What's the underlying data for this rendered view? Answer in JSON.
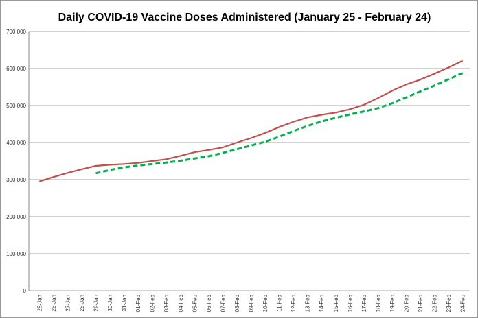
{
  "chart_data": {
    "type": "line",
    "title": "Daily COVID-19 Vaccine Doses Administered (January 25 - February 24)",
    "categories": [
      "25-Jan",
      "26-Jan",
      "27-Jan",
      "28-Jan",
      "29-Jan",
      "30-Jan",
      "31-Jan",
      "01-Feb",
      "02-Feb",
      "03-Feb",
      "04-Feb",
      "05-Feb",
      "06-Feb",
      "07-Feb",
      "08-Feb",
      "09-Feb",
      "10-Feb",
      "11-Feb",
      "12-Feb",
      "13-Feb",
      "14-Feb",
      "15-Feb",
      "16-Feb",
      "17-Feb",
      "18-Feb",
      "19-Feb",
      "20-Feb",
      "21-Feb",
      "22-Feb",
      "23-Feb",
      "24-Feb"
    ],
    "series": [
      {
        "color": "#c0504d",
        "dashed": false,
        "values": [
          295000,
          307000,
          318000,
          328000,
          337000,
          340000,
          342000,
          345000,
          350000,
          355000,
          364000,
          374000,
          380000,
          387000,
          400000,
          412000,
          426000,
          442000,
          456000,
          468000,
          475000,
          481000,
          490000,
          502000,
          520000,
          540000,
          557000,
          570000,
          586000,
          603000,
          621000
        ]
      },
      {
        "color": "#00b050",
        "dashed": true,
        "values": [
          null,
          null,
          null,
          null,
          317000,
          326000,
          333000,
          338000,
          342000,
          346000,
          351000,
          357000,
          363000,
          372000,
          382000,
          392000,
          402000,
          416000,
          431000,
          445000,
          457000,
          467000,
          476000,
          484000,
          493000,
          506000,
          522000,
          538000,
          554000,
          571000,
          588000
        ]
      }
    ],
    "ylim": [
      0,
      700000
    ],
    "yticks": [
      0,
      {
        "value": 100000,
        "label": "100,000"
      },
      {
        "value": 200000,
        "label": "200,000"
      },
      {
        "value": 300000,
        "label": "300,000"
      },
      {
        "value": 400000,
        "label": "400,000"
      },
      {
        "value": 500000,
        "label": "500,000"
      },
      {
        "value": 600000,
        "label": "600,000"
      },
      {
        "value": 700000,
        "label": "700,000"
      }
    ],
    "grid": true
  }
}
